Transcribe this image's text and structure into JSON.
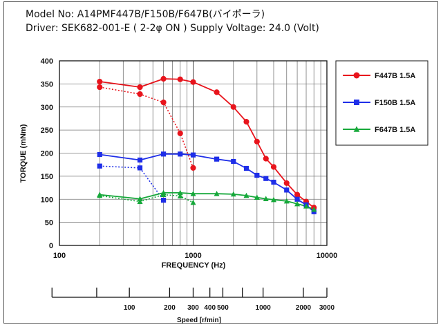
{
  "header": {
    "line1": "Model No: A14PMF447B/F150B/F647B(バイポーラ)",
    "line2": "Driver: SEK682-001-E ( 2-2φ  ON )  Supply Voltage: 24.0 (Volt)"
  },
  "chart_data": {
    "type": "line",
    "xlabel": "FREQUENCY (Hz)",
    "ylabel": "TORQUE (mNm)",
    "xscale": "log",
    "xlim": [
      100,
      10000
    ],
    "ylim": [
      0,
      400
    ],
    "x_ticks": [
      "100",
      "1000",
      "10000"
    ],
    "y_ticks": [
      "0",
      "50",
      "100",
      "150",
      "200",
      "250",
      "300",
      "350",
      "400"
    ],
    "grid": true,
    "legend_position": "right",
    "series": [
      {
        "name": "F447B 1.5A",
        "color": "#e8141c",
        "marker": "circle",
        "solid": {
          "x": [
            200,
            400,
            600,
            800,
            1000,
            1500,
            2000,
            2500,
            3000,
            3500,
            4000,
            5000,
            6000,
            7000,
            8000
          ],
          "y": [
            355,
            343,
            361,
            360,
            354,
            332,
            300,
            268,
            225,
            188,
            170,
            135,
            110,
            95,
            82
          ]
        },
        "dotted": {
          "x": [
            200,
            400,
            600,
            800,
            1000
          ],
          "y": [
            343,
            328,
            310,
            243,
            168
          ]
        }
      },
      {
        "name": "F150B 1.5A",
        "color": "#1e2ee8",
        "marker": "square",
        "solid": {
          "x": [
            200,
            400,
            600,
            800,
            1000,
            1500,
            2000,
            2500,
            3000,
            3500,
            4000,
            5000,
            6000,
            7000,
            8000
          ],
          "y": [
            197,
            185,
            198,
            198,
            196,
            187,
            182,
            167,
            152,
            145,
            137,
            120,
            100,
            88,
            73
          ]
        },
        "dotted": {
          "x": [
            200,
            400,
            600
          ],
          "y": [
            172,
            168,
            98
          ]
        }
      },
      {
        "name": "F647B 1.5A",
        "color": "#16a83a",
        "marker": "triangle",
        "solid": {
          "x": [
            200,
            400,
            600,
            800,
            1000,
            1500,
            2000,
            2500,
            3000,
            3500,
            4000,
            5000,
            6000,
            7000,
            8000
          ],
          "y": [
            110,
            101,
            114,
            114,
            112,
            112,
            111,
            108,
            104,
            101,
            99,
            96,
            90,
            85,
            78
          ]
        },
        "dotted": {
          "x": [
            200,
            400,
            600,
            800,
            1000
          ],
          "y": [
            108,
            95,
            110,
            107,
            93
          ]
        }
      }
    ],
    "speed_axis": {
      "label": "Speed [r/min]",
      "tick_labels": [
        {
          "text": "100",
          "freq": 333.3
        },
        {
          "text": "200",
          "freq": 666.7
        },
        {
          "text": "300",
          "freq": 1000
        },
        {
          "text": "400",
          "freq": 1333.3
        },
        {
          "text": "500",
          "freq": 1666.7
        },
        {
          "text": "1000",
          "freq": 3333.3
        },
        {
          "text": "2000",
          "freq": 6666.7
        },
        {
          "text": "3000",
          "freq": 10000
        }
      ],
      "unlabeled_ticks": [
        {
          "freq": 190
        },
        {
          "freq": 2333
        }
      ]
    }
  }
}
